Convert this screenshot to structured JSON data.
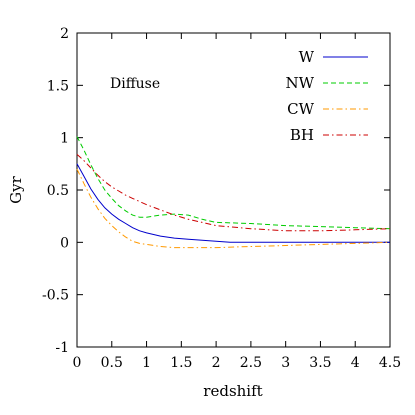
{
  "chart_data": {
    "type": "line",
    "title": "",
    "xlabel": "redshift",
    "ylabel": "Gyr",
    "xlim": [
      0,
      4.5
    ],
    "ylim": [
      -1,
      2
    ],
    "xticks": [
      0,
      0.5,
      1,
      1.5,
      2,
      2.5,
      3,
      3.5,
      4,
      4.5
    ],
    "xtick_labels": [
      "0",
      "0.5",
      "1",
      "1.5",
      "2",
      "2.5",
      "3",
      "3.5",
      "4",
      "4.5"
    ],
    "yticks": [
      -1,
      -0.5,
      0,
      0.5,
      1,
      1.5,
      2
    ],
    "ytick_labels": [
      "-1",
      "-0.5",
      "0",
      "0.5",
      "1",
      "1.5",
      "2"
    ],
    "grid": false,
    "legend_position": "top-right",
    "annotation": "Diffuse",
    "series": [
      {
        "name": "W",
        "color": "#0000cc",
        "dash": "solid",
        "x": [
          0,
          0.1,
          0.2,
          0.3,
          0.4,
          0.5,
          0.6,
          0.7,
          0.8,
          0.9,
          1.0,
          1.2,
          1.4,
          1.6,
          1.8,
          2.0,
          2.2,
          2.5,
          3.0,
          3.5,
          4.0,
          4.5
        ],
        "y": [
          0.75,
          0.63,
          0.51,
          0.41,
          0.33,
          0.27,
          0.22,
          0.18,
          0.14,
          0.11,
          0.09,
          0.06,
          0.04,
          0.03,
          0.02,
          0.01,
          0.0,
          0.0,
          0.0,
          0.0,
          0.0,
          0.0
        ]
      },
      {
        "name": "NW",
        "color": "#00cc00",
        "dash": "dashed",
        "x": [
          0,
          0.1,
          0.2,
          0.3,
          0.4,
          0.5,
          0.6,
          0.7,
          0.8,
          0.9,
          1.0,
          1.2,
          1.4,
          1.6,
          1.8,
          2.0,
          2.5,
          3.0,
          3.5,
          4.0,
          4.5
        ],
        "y": [
          1.01,
          0.88,
          0.74,
          0.61,
          0.5,
          0.42,
          0.35,
          0.3,
          0.26,
          0.24,
          0.24,
          0.26,
          0.27,
          0.26,
          0.22,
          0.19,
          0.18,
          0.16,
          0.15,
          0.14,
          0.13
        ]
      },
      {
        "name": "CW",
        "color": "#ff9900",
        "dash": "dash-dot",
        "x": [
          0,
          0.1,
          0.2,
          0.3,
          0.4,
          0.5,
          0.6,
          0.7,
          0.8,
          0.9,
          1.0,
          1.2,
          1.4,
          1.6,
          1.8,
          2.0,
          2.5,
          3.0,
          3.5,
          4.0,
          4.5
        ],
        "y": [
          0.7,
          0.56,
          0.43,
          0.32,
          0.23,
          0.16,
          0.1,
          0.05,
          0.01,
          -0.01,
          -0.02,
          -0.04,
          -0.05,
          -0.05,
          -0.05,
          -0.05,
          -0.04,
          -0.03,
          -0.02,
          -0.01,
          0.0
        ]
      },
      {
        "name": "BH",
        "color": "#cc0000",
        "dash": "dash-dot",
        "x": [
          0,
          0.1,
          0.2,
          0.3,
          0.4,
          0.5,
          0.6,
          0.7,
          0.8,
          0.9,
          1.0,
          1.2,
          1.4,
          1.6,
          1.8,
          2.0,
          2.5,
          3.0,
          3.5,
          4.0,
          4.5
        ],
        "y": [
          0.84,
          0.78,
          0.71,
          0.64,
          0.58,
          0.53,
          0.49,
          0.45,
          0.42,
          0.39,
          0.36,
          0.31,
          0.26,
          0.22,
          0.19,
          0.16,
          0.13,
          0.11,
          0.11,
          0.12,
          0.13
        ]
      }
    ]
  }
}
